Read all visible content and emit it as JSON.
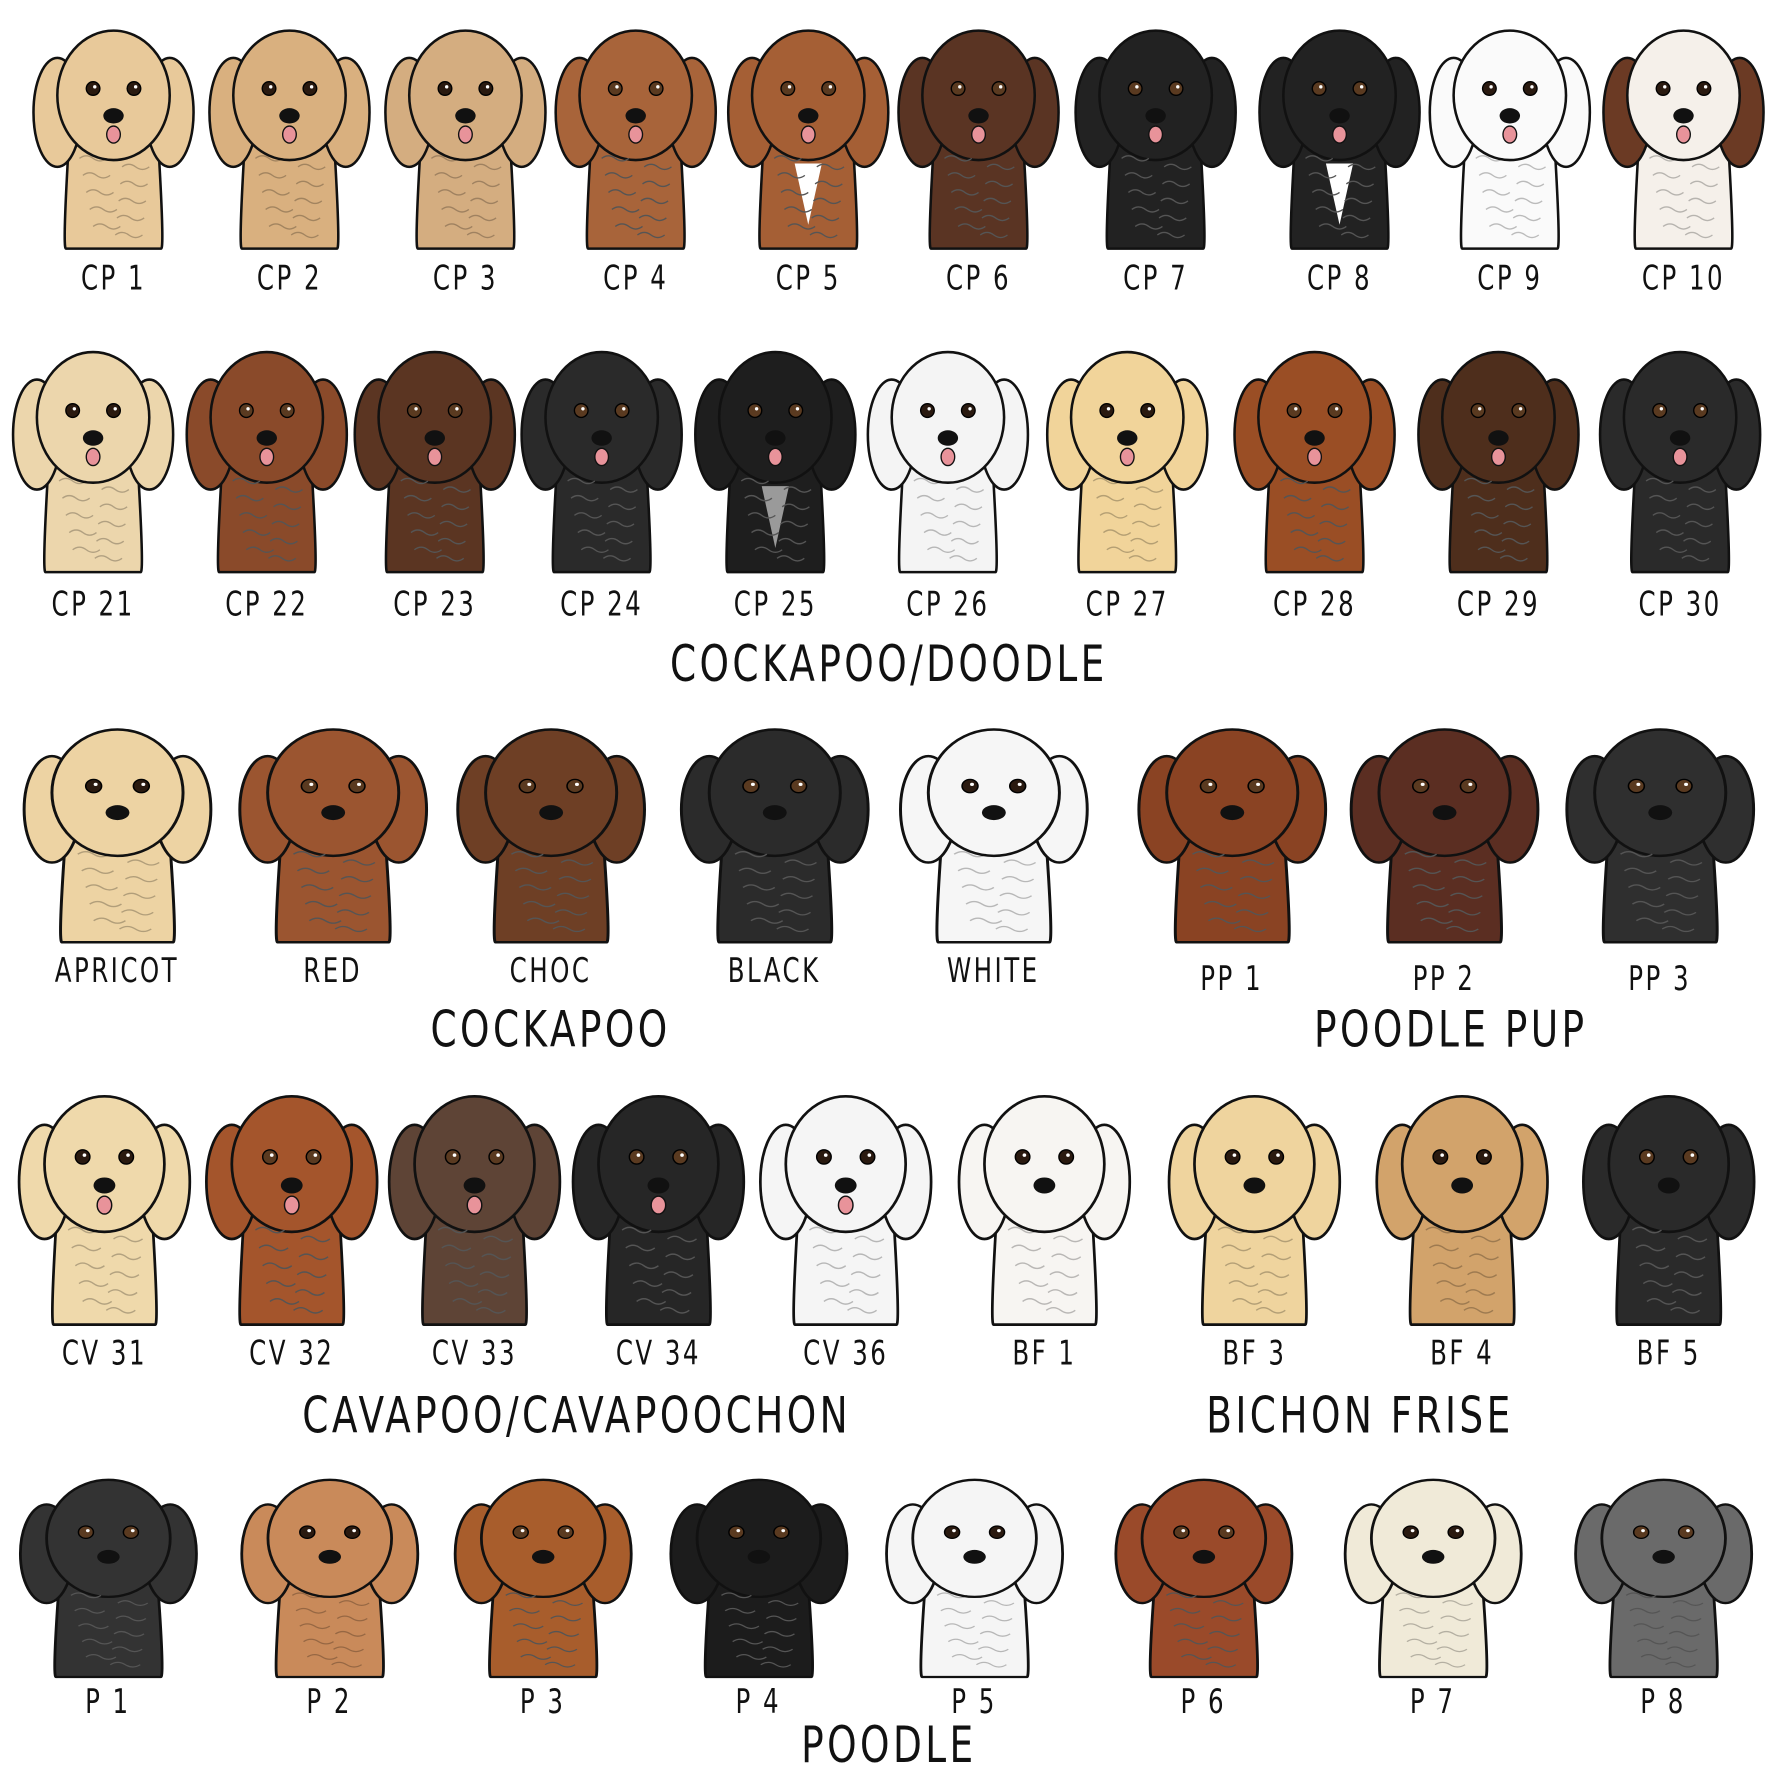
{
  "titles": [
    "COCKAPOO/DOODLE",
    "COCKAPOO",
    "POODLE PUP",
    "CAVAPOO/CAVAPOOCHON",
    "BICHON FRISE",
    "POODLE"
  ],
  "rows": [
    [
      {
        "label": "CP 1",
        "color": "#e8c99a"
      },
      {
        "label": "CP 2",
        "color": "#d9b07f"
      },
      {
        "label": "CP 3",
        "color": "#d4ad80"
      },
      {
        "label": "CP 4",
        "color": "#a8643a"
      },
      {
        "label": "CP 5",
        "color": "#a55f35",
        "chest": "#ffffff"
      },
      {
        "label": "CP 6",
        "color": "#5a3423"
      },
      {
        "label": "CP 7",
        "color": "#222222"
      },
      {
        "label": "CP 8",
        "color": "#222222",
        "chest": "#ffffff"
      },
      {
        "label": "CP 9",
        "color": "#fafafa"
      },
      {
        "label": "CP 10",
        "color": "#f5f0ea",
        "ears": "#6b3a24"
      }
    ],
    [
      {
        "label": "CP 21",
        "color": "#ecd6ac"
      },
      {
        "label": "CP 22",
        "color": "#8a4a2a"
      },
      {
        "label": "CP 23",
        "color": "#5b3522"
      },
      {
        "label": "CP 24",
        "color": "#2a2a2a"
      },
      {
        "label": "CP 25",
        "color": "#1e1e1e",
        "chest": "#9a9a9a"
      },
      {
        "label": "CP 26",
        "color": "#f4f4f4"
      },
      {
        "label": "CP 27",
        "color": "#f1d49a"
      },
      {
        "label": "CP 28",
        "color": "#9a4e25"
      },
      {
        "label": "CP 29",
        "color": "#4e2e1c"
      },
      {
        "label": "CP 30",
        "color": "#2a2a2a"
      }
    ],
    [
      {
        "label": "APRICOT",
        "color": "#edd3a3"
      },
      {
        "label": "RED",
        "color": "#9b5530"
      },
      {
        "label": "CHOC",
        "color": "#6e3f25"
      },
      {
        "label": "BLACK",
        "color": "#2b2b2b"
      },
      {
        "label": "WHITE",
        "color": "#f6f6f6"
      },
      {
        "label": "PP 1",
        "color": "#8a4323"
      },
      {
        "label": "PP 2",
        "color": "#5b2e22"
      },
      {
        "label": "PP 3",
        "color": "#2f2f2f"
      }
    ],
    [
      {
        "label": "CV 31",
        "color": "#efd9ab"
      },
      {
        "label": "CV 32",
        "color": "#a4552c"
      },
      {
        "label": "CV 33",
        "color": "#5e4436"
      },
      {
        "label": "CV 34",
        "color": "#262626"
      },
      {
        "label": "CV 36",
        "color": "#f5f5f5"
      },
      {
        "label": "BF 1",
        "color": "#f7f5f2"
      },
      {
        "label": "BF 3",
        "color": "#efd49e"
      },
      {
        "label": "BF 4",
        "color": "#d2a36b"
      },
      {
        "label": "BF 5",
        "color": "#2a2a2a"
      }
    ],
    [
      {
        "label": "P 1",
        "color": "#333333"
      },
      {
        "label": "P 2",
        "color": "#c98a5a"
      },
      {
        "label": "P 3",
        "color": "#a85d2c"
      },
      {
        "label": "P 4",
        "color": "#1c1c1c"
      },
      {
        "label": "P 5",
        "color": "#f5f5f5"
      },
      {
        "label": "P 6",
        "color": "#9a4a2a"
      },
      {
        "label": "P 7",
        "color": "#f0ead8"
      },
      {
        "label": "P 8",
        "color": "#6a6a6a"
      }
    ]
  ]
}
